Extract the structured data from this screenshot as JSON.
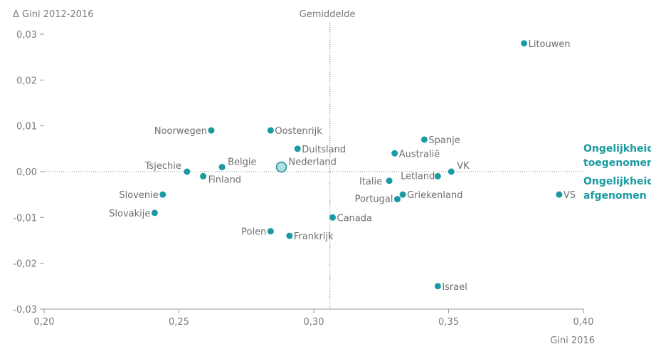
{
  "chart_data": {
    "type": "scatter",
    "title": "",
    "xlabel": "Gini 2016",
    "ylabel": "Δ Gini 2012-2016",
    "xlim": [
      0.2,
      0.4
    ],
    "ylim": [
      -0.03,
      0.03
    ],
    "x_ticks": [
      "0,20",
      "0,25",
      "0,30",
      "0,35",
      "0,40"
    ],
    "y_ticks": [
      "0,03",
      "0,02",
      "0,01",
      "0,00",
      "-0,01",
      "-0,02",
      "-0,03"
    ],
    "average_x": 0.306,
    "average_label": "Gemiddelde",
    "zone_labels": {
      "above": [
        "Ongelijkheid",
        "toegenomen"
      ],
      "below": [
        "Ongelijkheid",
        "afgenomen"
      ]
    },
    "colors": {
      "point": "#1a9aa1",
      "highlight_fill": "#b4dde0",
      "highlight_stroke": "#1a8f96",
      "axis": "#9a9a9a"
    },
    "highlight": "Nederland",
    "points": [
      {
        "name": "Litouwen",
        "x": 0.378,
        "y": 0.028
      },
      {
        "name": "Noorwegen",
        "x": 0.262,
        "y": 0.009
      },
      {
        "name": "Oostenrijk",
        "x": 0.284,
        "y": 0.009
      },
      {
        "name": "Spanje",
        "x": 0.341,
        "y": 0.007
      },
      {
        "name": "Duitsland",
        "x": 0.294,
        "y": 0.005
      },
      {
        "name": "Australië",
        "x": 0.33,
        "y": 0.004
      },
      {
        "name": "Tsjechie",
        "x": 0.253,
        "y": 0.0
      },
      {
        "name": "Belgie",
        "x": 0.266,
        "y": 0.001
      },
      {
        "name": "Nederland",
        "x": 0.288,
        "y": 0.001
      },
      {
        "name": "Finland",
        "x": 0.259,
        "y": -0.001
      },
      {
        "name": "VK",
        "x": 0.351,
        "y": 0.0
      },
      {
        "name": "Letland",
        "x": 0.346,
        "y": -0.001
      },
      {
        "name": "Italie",
        "x": 0.328,
        "y": -0.002
      },
      {
        "name": "Slovenie",
        "x": 0.244,
        "y": -0.005
      },
      {
        "name": "Griekenland",
        "x": 0.333,
        "y": -0.005
      },
      {
        "name": "Portugal",
        "x": 0.331,
        "y": -0.006
      },
      {
        "name": "VS",
        "x": 0.391,
        "y": -0.005
      },
      {
        "name": "Slovakije",
        "x": 0.241,
        "y": -0.009
      },
      {
        "name": "Canada",
        "x": 0.307,
        "y": -0.01
      },
      {
        "name": "Polen",
        "x": 0.284,
        "y": -0.013
      },
      {
        "name": "Frankrijk",
        "x": 0.291,
        "y": -0.014
      },
      {
        "name": "Israel",
        "x": 0.346,
        "y": -0.025
      }
    ]
  }
}
